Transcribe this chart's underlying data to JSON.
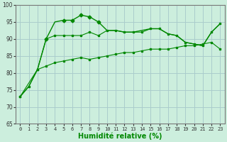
{
  "xlabel": "Humidité relative (%)",
  "bg_color": "#cceedd",
  "grid_color": "#aacccc",
  "line_color": "#008800",
  "xlim": [
    -0.5,
    23.5
  ],
  "ylim": [
    65,
    100
  ],
  "xticks": [
    0,
    1,
    2,
    3,
    4,
    5,
    6,
    7,
    8,
    9,
    10,
    11,
    12,
    13,
    14,
    15,
    16,
    17,
    18,
    19,
    20,
    21,
    22,
    23
  ],
  "yticks": [
    65,
    70,
    75,
    80,
    85,
    90,
    95,
    100
  ],
  "line1_x": [
    0,
    1,
    2,
    3,
    4,
    5,
    6,
    7,
    8,
    9,
    10,
    11,
    12,
    13,
    14,
    15,
    16,
    17,
    18,
    19,
    20,
    21,
    22,
    23
  ],
  "line1_y": [
    73,
    76,
    81,
    90,
    95,
    95.5,
    95.5,
    97,
    96.5,
    95,
    92.5,
    92.5,
    92,
    92,
    92.5,
    93,
    93,
    91.5,
    91,
    89,
    88.5,
    88,
    92,
    94.5
  ],
  "line2_x": [
    0,
    2,
    3,
    4,
    5,
    6,
    7,
    8,
    9,
    10,
    11,
    12,
    13,
    14,
    15,
    16,
    17,
    18,
    19,
    20,
    21,
    22,
    23
  ],
  "line2_y": [
    73,
    81,
    90,
    91,
    91,
    91,
    91,
    92,
    91,
    92.5,
    92.5,
    92,
    92,
    92,
    93,
    93,
    91.5,
    91,
    89,
    88.5,
    88,
    92,
    94.5
  ],
  "line3_x": [
    0,
    1,
    2,
    3,
    4,
    5,
    6,
    7,
    8,
    9,
    10,
    11,
    12,
    13,
    14,
    15,
    16,
    17,
    18,
    19,
    20,
    21,
    22,
    23
  ],
  "line3_y": [
    73,
    76,
    81,
    82,
    83,
    83.5,
    84,
    84.5,
    84,
    84.5,
    85,
    85.5,
    86,
    86,
    86.5,
    87,
    87,
    87,
    87.5,
    88,
    88,
    88.5,
    89,
    87
  ]
}
